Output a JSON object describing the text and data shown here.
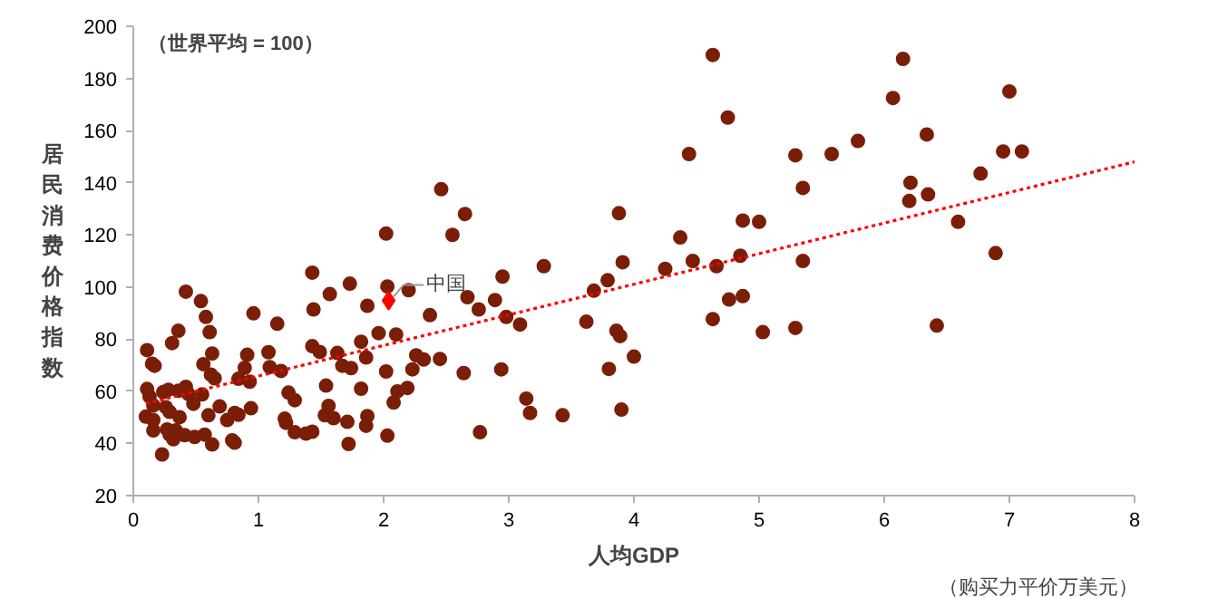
{
  "chart_data": {
    "type": "scatter",
    "xlabel": "人均GDP",
    "ylabel": "居民消费价格指数",
    "xlim": [
      0,
      8
    ],
    "xticks": [
      0,
      1,
      2,
      3,
      4,
      5,
      6,
      7,
      8
    ],
    "ylim": [
      20,
      200
    ],
    "yticks": [
      20,
      40,
      60,
      80,
      100,
      120,
      140,
      160,
      180,
      200
    ],
    "grid": false,
    "annotations": [
      "（世界平均 = 100）",
      "（购买力平价万美元）",
      {
        "text": "中国",
        "x": 2.04,
        "y": 94.8
      }
    ],
    "series": [
      {
        "color": "#7b1e08",
        "marker": "circle",
        "x": [
          4.63,
          6.15,
          4.75,
          6.07,
          7.0,
          4.44,
          5.29,
          5.58,
          5.79,
          6.34,
          6.95,
          7.1,
          5.35,
          6.21,
          6.2,
          6.35,
          6.77,
          6.59,
          4.87,
          5.0,
          4.37,
          4.47,
          4.25,
          4.66,
          4.85,
          5.35,
          6.89,
          4.76,
          4.87,
          4.63,
          5.03,
          5.29,
          6.42,
          2.46,
          2.65,
          2.02,
          2.55,
          3.88,
          3.28,
          3.91,
          2.95,
          2.03,
          2.2,
          1.87,
          3.79,
          3.68,
          2.67,
          2.89,
          2.76,
          2.37,
          2.98,
          3.09,
          3.62,
          3.86,
          3.89,
          1.96,
          2.1,
          1.86,
          2.26,
          2.32,
          2.45,
          4.0,
          2.02,
          2.23,
          2.64,
          2.94,
          3.8,
          2.11,
          2.19,
          2.08,
          3.14,
          3.17,
          3.43,
          3.9,
          1.87,
          1.86,
          2.03,
          2.77,
          1.43,
          1.73,
          0.42,
          0.54,
          1.57,
          1.44,
          0.58,
          0.96,
          1.15,
          0.36,
          0.61,
          0.31,
          1.82,
          0.11,
          0.63,
          1.08,
          1.43,
          1.49,
          1.63,
          0.15,
          0.17,
          0.56,
          0.91,
          0.89,
          1.09,
          1.67,
          1.74,
          0.62,
          0.65,
          0.84,
          0.93,
          1.18,
          0.11,
          0.13,
          0.24,
          0.28,
          0.36,
          0.42,
          0.44,
          0.55,
          0.16,
          0.26,
          0.29,
          0.48,
          0.69,
          0.1,
          0.16,
          0.37,
          0.6,
          0.75,
          0.81,
          0.84,
          0.94,
          1.24,
          1.29,
          1.54,
          1.56,
          1.53,
          1.6,
          1.71,
          1.82,
          0.16,
          0.27,
          0.29,
          0.34,
          0.32,
          0.41,
          0.49,
          0.57,
          0.63,
          0.79,
          0.81,
          1.21,
          1.22,
          1.29,
          1.38,
          1.43,
          1.72,
          0.23
        ],
        "values": [
          189,
          187.5,
          165,
          172.5,
          175,
          151,
          150.5,
          151,
          156,
          158.5,
          152,
          152,
          138,
          140,
          133,
          135.5,
          143.5,
          125,
          125.5,
          125,
          119,
          110,
          107,
          108,
          112,
          110,
          113,
          95.2,
          96.5,
          87.7,
          82.7,
          84.3,
          85.2,
          137.5,
          128,
          120.5,
          120,
          128.3,
          108,
          109.5,
          104,
          100.2,
          98.8,
          92.8,
          102.6,
          98.6,
          96.1,
          95,
          91.4,
          89.2,
          88.5,
          85.6,
          86.7,
          83.2,
          81.2,
          82.3,
          81.8,
          73,
          73.8,
          72.2,
          72.4,
          73.3,
          67.6,
          68.4,
          67,
          68.4,
          68.6,
          60,
          61.3,
          55.7,
          57.2,
          51.7,
          50.8,
          53,
          50.5,
          46.8,
          43,
          44.3,
          105.5,
          101.3,
          98.2,
          94.6,
          97.3,
          91.4,
          88.5,
          89.9,
          85.9,
          83.2,
          82.7,
          78.5,
          79,
          75.8,
          74.5,
          75,
          77.3,
          75.1,
          74.7,
          70.6,
          69.8,
          70.4,
          74,
          69,
          69.3,
          69.8,
          68.9,
          66.4,
          65,
          64.8,
          63.7,
          67.8,
          60.9,
          58,
          59.7,
          60.6,
          60.2,
          61.7,
          59,
          58.8,
          54.6,
          53.9,
          52.1,
          55.2,
          54.2,
          50.3,
          49,
          50.1,
          50.8,
          49,
          51.7,
          51,
          53.5,
          59.5,
          56.6,
          62.2,
          54.4,
          50.8,
          49.7,
          48.3,
          61,
          45,
          45.4,
          43.4,
          45,
          41.6,
          43.2,
          42.5,
          43.4,
          39.6,
          41.2,
          40.3,
          49.5,
          47.9,
          44.3,
          43.8,
          44.5,
          39.8,
          35.8
        ]
      },
      {
        "color": "#ff0000",
        "marker": "diamond",
        "x": [
          2.04
        ],
        "values": [
          94.8
        ]
      },
      {
        "type": "line",
        "color": "#ff0000",
        "line_style": "dotted",
        "x": [
          0.1,
          8.0
        ],
        "values": [
          55.3,
          148
        ]
      }
    ]
  }
}
